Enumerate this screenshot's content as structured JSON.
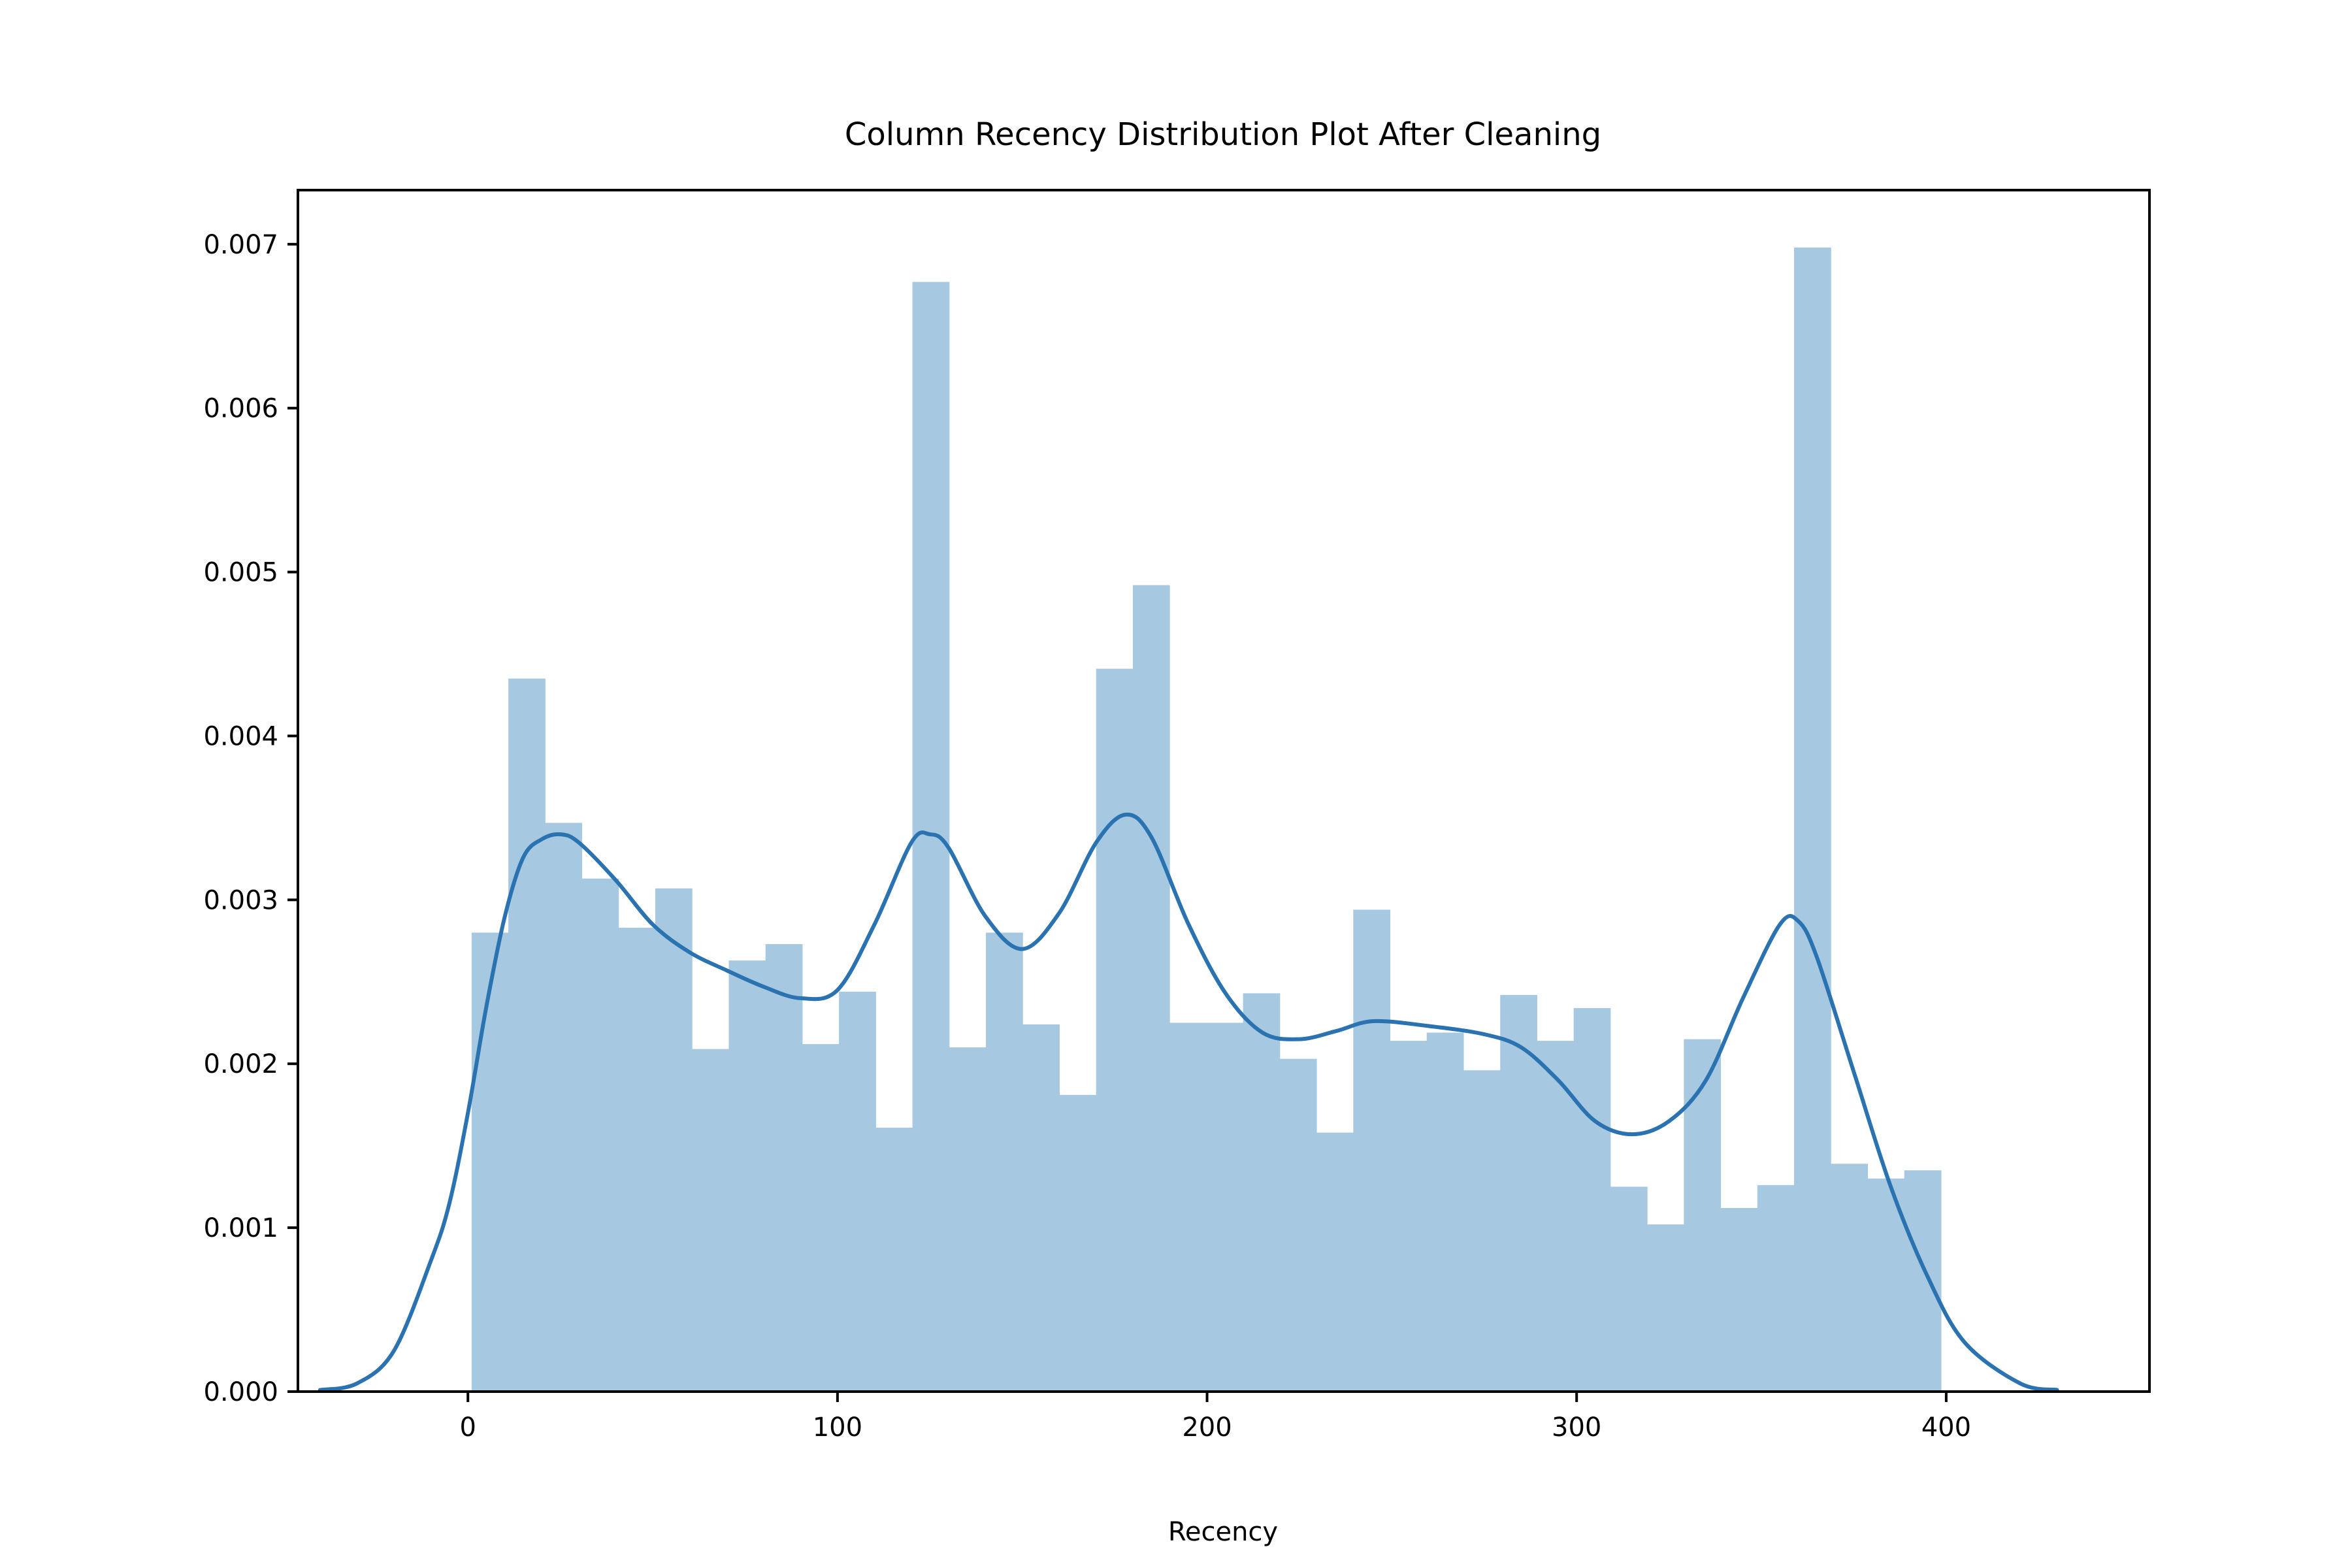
{
  "chart_data": {
    "type": "bar",
    "title": "Column Recency Distribution Plot After Cleaning",
    "xlabel": "Recency",
    "ylabel": "",
    "xlim": [
      -46,
      455
    ],
    "ylim": [
      0,
      0.00733
    ],
    "xticks": [
      0,
      100,
      200,
      300,
      400
    ],
    "yticks": [
      0.0,
      0.001,
      0.002,
      0.003,
      0.004,
      0.005,
      0.006,
      0.007
    ],
    "ytick_labels": [
      "0.000",
      "0.001",
      "0.002",
      "0.003",
      "0.004",
      "0.005",
      "0.006",
      "0.007"
    ],
    "grid": false,
    "histogram": {
      "bin_start": 1,
      "bin_width": 9.94,
      "densities": [
        0.0028,
        0.00435,
        0.00347,
        0.00313,
        0.00283,
        0.00307,
        0.00209,
        0.00263,
        0.00273,
        0.00212,
        0.00244,
        0.00161,
        0.00677,
        0.0021,
        0.0028,
        0.00224,
        0.00181,
        0.00441,
        0.00492,
        0.00225,
        0.00225,
        0.00243,
        0.00203,
        0.00158,
        0.00294,
        0.00214,
        0.00219,
        0.00196,
        0.00242,
        0.00214,
        0.00234,
        0.00125,
        0.00102,
        0.00215,
        0.00112,
        0.00126,
        0.00698,
        0.00139,
        0.0013,
        0.00135
      ],
      "color": "#a6c8e1"
    },
    "kde": {
      "color": "#2a73b0",
      "x": [
        -40,
        -30,
        -20,
        -10,
        -5,
        0,
        5,
        10,
        15,
        20,
        25,
        30,
        40,
        50,
        60,
        70,
        80,
        90,
        100,
        110,
        120,
        125,
        130,
        140,
        150,
        160,
        170,
        178,
        185,
        195,
        205,
        215,
        225,
        235,
        245,
        260,
        275,
        285,
        295,
        305,
        315,
        325,
        335,
        345,
        355,
        360,
        365,
        375,
        385,
        395,
        405,
        420,
        430
      ],
      "y": [
        1e-05,
        5e-05,
        0.00025,
        0.0008,
        0.00115,
        0.0017,
        0.00235,
        0.0029,
        0.00326,
        0.00337,
        0.0034,
        0.00335,
        0.00312,
        0.00285,
        0.00268,
        0.00257,
        0.00247,
        0.0024,
        0.00245,
        0.00285,
        0.00335,
        0.0034,
        0.00332,
        0.0029,
        0.0027,
        0.00292,
        0.00335,
        0.00352,
        0.00338,
        0.00285,
        0.00243,
        0.00219,
        0.00215,
        0.0022,
        0.00226,
        0.00223,
        0.00218,
        0.0021,
        0.0019,
        0.00165,
        0.00157,
        0.00165,
        0.0019,
        0.0024,
        0.00285,
        0.00287,
        0.00265,
        0.00195,
        0.00125,
        0.0007,
        0.0003,
        5e-05,
        1e-05
      ]
    }
  }
}
